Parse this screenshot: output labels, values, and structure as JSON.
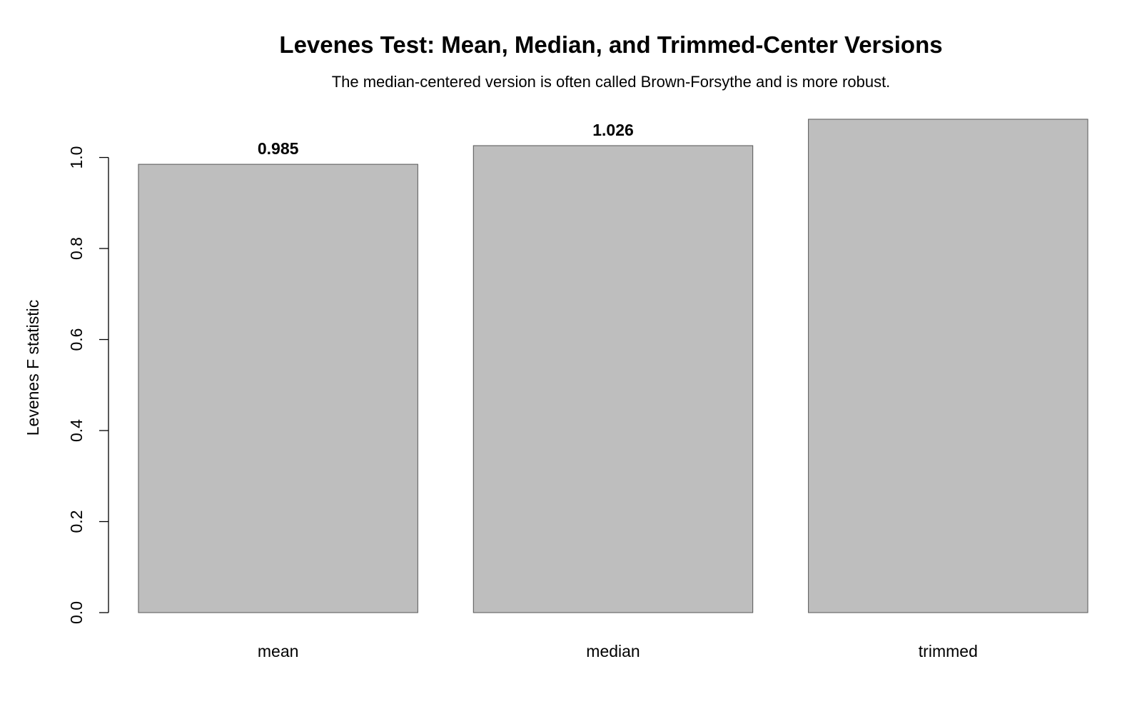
{
  "chart_data": {
    "type": "bar",
    "title": "Levenes Test: Mean, Median, and Trimmed-Center Versions",
    "subtitle": "The median-centered version is often called Brown-Forsythe and is more robust.",
    "xlabel": "",
    "ylabel": "Levenes F statistic",
    "categories": [
      "mean",
      "median",
      "trimmed"
    ],
    "values": [
      0.985,
      1.026,
      1.084
    ],
    "data_labels": [
      "0.985",
      "1.026",
      ""
    ],
    "ylim": [
      0,
      1.084
    ],
    "yticks": [
      0.0,
      0.2,
      0.4,
      0.6,
      0.8,
      1.0
    ],
    "ytick_labels": [
      "0.0",
      "0.2",
      "0.4",
      "0.6",
      "0.8",
      "1.0"
    ],
    "grid": false,
    "legend": "none",
    "bar_fill": "#bebebe",
    "bar_stroke": "#555555"
  }
}
